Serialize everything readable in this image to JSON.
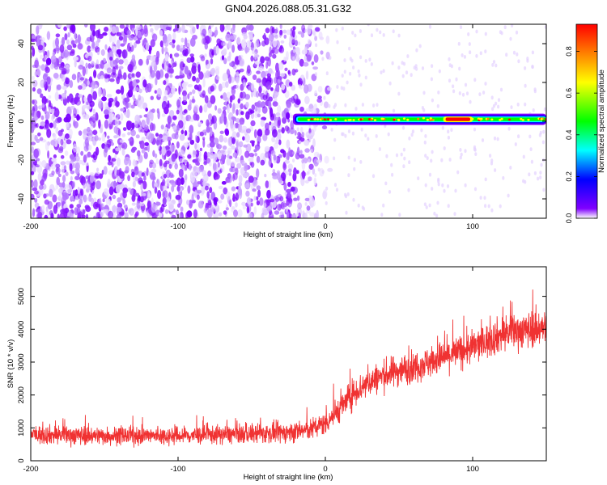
{
  "title": "GN04.2026.088.05.31.G32",
  "chart_data": [
    {
      "type": "heatmap",
      "xlabel": "Height of straight line (km)",
      "ylabel": "Frequency (Hz)",
      "xlim": [
        -200,
        150
      ],
      "ylim": [
        -50,
        50
      ],
      "xticks": [
        -200,
        -100,
        0,
        100
      ],
      "yticks": [
        -40,
        -20,
        0,
        20,
        40
      ],
      "grid": false,
      "colorbar": {
        "label": "Normalized spectral amplitude",
        "range": [
          0.0,
          0.93
        ],
        "ticks": [
          0.0,
          0.2,
          0.4,
          0.6,
          0.8
        ],
        "colormap": [
          "#ffffff",
          "#8000ff",
          "#0000ff",
          "#00ffff",
          "#00ff00",
          "#ffff00",
          "#ff8000",
          "#ff0000"
        ]
      },
      "features": {
        "noise_region_x": [
          -200,
          -20
        ],
        "noise_amplitude": 0.05,
        "carrier_x": [
          -22,
          150
        ],
        "carrier_frequency_hz": 1,
        "carrier_amplitude": 0.45,
        "peak_x": [
          80,
          100
        ],
        "peak_amplitude": 0.9
      }
    },
    {
      "type": "line",
      "xlabel": "Height of straight line (km)",
      "ylabel": "SNR (10 * v/v)",
      "xlim": [
        -200,
        150
      ],
      "ylim": [
        0,
        5900
      ],
      "xticks": [
        -200,
        -100,
        0,
        100
      ],
      "yticks": [
        0,
        1000,
        2000,
        3000,
        4000,
        5000
      ],
      "grid": false,
      "series": [
        {
          "color": "#f03232",
          "x": [
            -200,
            -175,
            -150,
            -125,
            -100,
            -75,
            -50,
            -25,
            -10,
            0,
            10,
            20,
            30,
            40,
            50,
            60,
            70,
            80,
            90,
            100,
            110,
            120,
            130,
            140,
            150
          ],
          "y": [
            800,
            780,
            760,
            760,
            760,
            790,
            820,
            860,
            950,
            1150,
            1600,
            2100,
            2400,
            2600,
            2750,
            2850,
            3000,
            3150,
            3300,
            3450,
            3650,
            3850,
            3950,
            4000,
            4050
          ],
          "spread": [
            450,
            450,
            430,
            420,
            420,
            440,
            460,
            480,
            500,
            550,
            650,
            700,
            700,
            720,
            720,
            720,
            740,
            760,
            780,
            800,
            820,
            850,
            850,
            850,
            850
          ]
        }
      ]
    }
  ]
}
